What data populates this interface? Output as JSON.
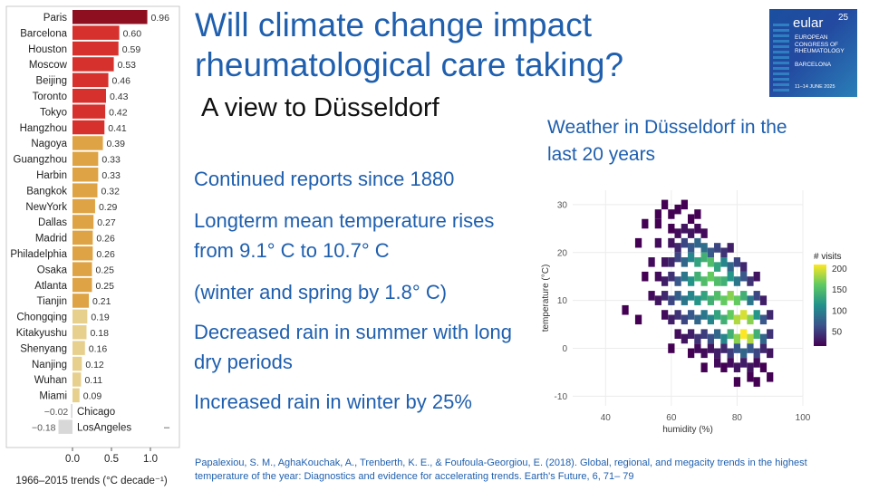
{
  "slide": {
    "title": "Will climate change impact rheumatological care taking?",
    "subtitle": "A view to Düsseldorf",
    "bullets": [
      "Continued reports since 1880",
      "Longterm mean temperature rises from 9.1° C to 10.7° C",
      "(winter and spring by 1.8° C)",
      "Decreased rain in summer with long dry periods",
      "Increased rain in winter by 25%"
    ],
    "citation": "Papalexiou, S. M., AghaKouchak, A., Trenberth, K. E., & Foufoula-Georgiou, E. (2018). Global, regional, and megacity trends in the highest temperature of the year: Diagnostics and evidence for accelerating trends. Earth's Future, 6, 71– 79"
  },
  "logo": {
    "word": "eular",
    "number": "25",
    "line1": "EUROPEAN",
    "line2": "CONGRESS OF",
    "line3": "RHEUMATOLOGY",
    "city": "BARCELONA",
    "dates": "11–14 JUNE 2025",
    "colors": {
      "bg": "#1b4fa0",
      "accent": "#3aa0d8"
    }
  },
  "chart_data": [
    {
      "type": "bar",
      "orientation": "horizontal",
      "categories": [
        "Paris",
        "Barcelona",
        "Houston",
        "Moscow",
        "Beijing",
        "Toronto",
        "Tokyo",
        "Hangzhou",
        "Nagoya",
        "Guangzhou",
        "Harbin",
        "Bangkok",
        "NewYork",
        "Dallas",
        "Madrid",
        "Philadelphia",
        "Osaka",
        "Atlanta",
        "Tianjin",
        "Chongqing",
        "Kitakyushu",
        "Shenyang",
        "Nanjing",
        "Wuhan",
        "Miami",
        "Chicago",
        "LosAngeles"
      ],
      "values": [
        0.96,
        0.6,
        0.59,
        0.53,
        0.46,
        0.43,
        0.42,
        0.41,
        0.39,
        0.33,
        0.33,
        0.32,
        0.29,
        0.27,
        0.26,
        0.26,
        0.25,
        0.25,
        0.21,
        0.19,
        0.18,
        0.16,
        0.12,
        0.11,
        0.09,
        -0.02,
        -0.18
      ],
      "value_labels": [
        "0.96",
        "0.60",
        "0.59",
        "0.53",
        "0.46",
        "0.43",
        "0.42",
        "0.41",
        "0.39",
        "0.33",
        "0.33",
        "0.32",
        "0.29",
        "0.27",
        "0.26",
        "0.26",
        "0.25",
        "0.25",
        "0.21",
        "0.19",
        "0.18",
        "0.16",
        "0.12",
        "0.11",
        "0.09",
        "−0.02",
        "−0.18"
      ],
      "colors": [
        "#8e1020",
        "#d6312c",
        "#d6312c",
        "#d6312c",
        "#d6312c",
        "#d6312c",
        "#d6312c",
        "#d6312c",
        "#dea344",
        "#dea344",
        "#dea344",
        "#dea344",
        "#dea344",
        "#dea344",
        "#dea344",
        "#dea344",
        "#dea344",
        "#dea344",
        "#dea344",
        "#e7d08e",
        "#e7d08e",
        "#e7d08e",
        "#e7d08e",
        "#e7d08e",
        "#e7d08e",
        "#d8d8d8",
        "#d8d8d8"
      ],
      "xlim": [
        -0.2,
        1.0
      ],
      "xticks": [
        "0.0",
        "0.5",
        "1.0"
      ],
      "xtick_values": [
        0.0,
        0.5,
        1.0
      ],
      "xlabel": "1966–2015 trends (°C decade⁻¹)",
      "title": "",
      "grid": false
    },
    {
      "type": "heatmap",
      "title": "Weather in Düsseldorf in the last 20 years",
      "xlabel": "humidity (%)",
      "ylabel": "temperature (°C)",
      "xticks": [
        40,
        60,
        80,
        100
      ],
      "yticks": [
        -10,
        0,
        10,
        20,
        30
      ],
      "xlim": [
        30,
        100
      ],
      "ylim": [
        -12,
        33
      ],
      "legend_title": "# visits",
      "legend_ticks": [
        50,
        100,
        150,
        200
      ],
      "legend_placement": "right",
      "colorscale": [
        "#440154",
        "#3b528b",
        "#21918c",
        "#5ec962",
        "#fde725"
      ],
      "bin_size": {
        "humidity": 2,
        "temperature": 2
      },
      "bins": [
        [
          58,
          30,
          1
        ],
        [
          62,
          29,
          1
        ],
        [
          64,
          30,
          1
        ],
        [
          56,
          28,
          1
        ],
        [
          60,
          28,
          1
        ],
        [
          66,
          27,
          1
        ],
        [
          68,
          28,
          1
        ],
        [
          52,
          26,
          1
        ],
        [
          56,
          26,
          1
        ],
        [
          60,
          25,
          1
        ],
        [
          62,
          24,
          2
        ],
        [
          64,
          25,
          3
        ],
        [
          66,
          24,
          3
        ],
        [
          68,
          25,
          2
        ],
        [
          70,
          24,
          2
        ],
        [
          50,
          22,
          1
        ],
        [
          56,
          22,
          2
        ],
        [
          60,
          22,
          3
        ],
        [
          62,
          21,
          5
        ],
        [
          64,
          22,
          8
        ],
        [
          66,
          21,
          10
        ],
        [
          68,
          22,
          12
        ],
        [
          70,
          21,
          13
        ],
        [
          72,
          20,
          10
        ],
        [
          74,
          21,
          8
        ],
        [
          76,
          20,
          6
        ],
        [
          78,
          21,
          4
        ],
        [
          54,
          18,
          2
        ],
        [
          58,
          18,
          3
        ],
        [
          60,
          18,
          5
        ],
        [
          62,
          19,
          8
        ],
        [
          64,
          18,
          12
        ],
        [
          66,
          19,
          16
        ],
        [
          68,
          18,
          20
        ],
        [
          70,
          19,
          22
        ],
        [
          72,
          18,
          24
        ],
        [
          74,
          17,
          20
        ],
        [
          76,
          18,
          16
        ],
        [
          78,
          17,
          12
        ],
        [
          80,
          18,
          8
        ],
        [
          82,
          17,
          5
        ],
        [
          52,
          15,
          1
        ],
        [
          56,
          15,
          2
        ],
        [
          58,
          14,
          4
        ],
        [
          60,
          15,
          6
        ],
        [
          62,
          14,
          10
        ],
        [
          64,
          15,
          14
        ],
        [
          66,
          14,
          18
        ],
        [
          68,
          15,
          22
        ],
        [
          70,
          14,
          24
        ],
        [
          72,
          15,
          26
        ],
        [
          74,
          14,
          24
        ],
        [
          76,
          14,
          22
        ],
        [
          78,
          15,
          18
        ],
        [
          80,
          14,
          14
        ],
        [
          82,
          15,
          10
        ],
        [
          84,
          14,
          6
        ],
        [
          86,
          15,
          3
        ],
        [
          54,
          11,
          2
        ],
        [
          56,
          10,
          3
        ],
        [
          58,
          11,
          5
        ],
        [
          60,
          10,
          8
        ],
        [
          62,
          11,
          11
        ],
        [
          64,
          10,
          14
        ],
        [
          66,
          11,
          16
        ],
        [
          68,
          10,
          18
        ],
        [
          70,
          11,
          20
        ],
        [
          72,
          10,
          22
        ],
        [
          74,
          11,
          24
        ],
        [
          76,
          10,
          26
        ],
        [
          78,
          11,
          28
        ],
        [
          80,
          10,
          26
        ],
        [
          82,
          11,
          22
        ],
        [
          84,
          10,
          14
        ],
        [
          86,
          11,
          8
        ],
        [
          88,
          10,
          4
        ],
        [
          46,
          8,
          1
        ],
        [
          50,
          6,
          1
        ],
        [
          58,
          7,
          2
        ],
        [
          60,
          6,
          4
        ],
        [
          62,
          7,
          6
        ],
        [
          64,
          6,
          8
        ],
        [
          66,
          7,
          10
        ],
        [
          68,
          6,
          12
        ],
        [
          70,
          7,
          14
        ],
        [
          72,
          6,
          16
        ],
        [
          74,
          7,
          20
        ],
        [
          76,
          6,
          22
        ],
        [
          78,
          7,
          26
        ],
        [
          80,
          6,
          30
        ],
        [
          82,
          7,
          32
        ],
        [
          84,
          6,
          28
        ],
        [
          86,
          7,
          18
        ],
        [
          88,
          6,
          10
        ],
        [
          90,
          7,
          5
        ],
        [
          62,
          3,
          2
        ],
        [
          64,
          2,
          3
        ],
        [
          66,
          3,
          4
        ],
        [
          68,
          2,
          6
        ],
        [
          70,
          3,
          7
        ],
        [
          72,
          2,
          9
        ],
        [
          74,
          3,
          12
        ],
        [
          76,
          2,
          16
        ],
        [
          78,
          3,
          22
        ],
        [
          80,
          2,
          28
        ],
        [
          82,
          3,
          34
        ],
        [
          84,
          2,
          30
        ],
        [
          86,
          3,
          22
        ],
        [
          88,
          2,
          12
        ],
        [
          90,
          3,
          6
        ],
        [
          60,
          0,
          1
        ],
        [
          66,
          -1,
          1
        ],
        [
          68,
          0,
          2
        ],
        [
          70,
          -1,
          2
        ],
        [
          72,
          0,
          3
        ],
        [
          74,
          -1,
          4
        ],
        [
          76,
          0,
          5
        ],
        [
          78,
          -1,
          7
        ],
        [
          80,
          0,
          10
        ],
        [
          82,
          -1,
          12
        ],
        [
          84,
          0,
          10
        ],
        [
          86,
          -1,
          8
        ],
        [
          88,
          0,
          5
        ],
        [
          90,
          -1,
          3
        ],
        [
          70,
          -4,
          1
        ],
        [
          74,
          -3,
          2
        ],
        [
          76,
          -4,
          1
        ],
        [
          78,
          -3,
          2
        ],
        [
          80,
          -4,
          3
        ],
        [
          82,
          -3,
          4
        ],
        [
          84,
          -4,
          3
        ],
        [
          86,
          -3,
          2
        ],
        [
          88,
          -4,
          1
        ],
        [
          80,
          -7,
          1
        ],
        [
          84,
          -6,
          1
        ],
        [
          86,
          -7,
          1
        ],
        [
          90,
          -6,
          1
        ]
      ]
    }
  ]
}
